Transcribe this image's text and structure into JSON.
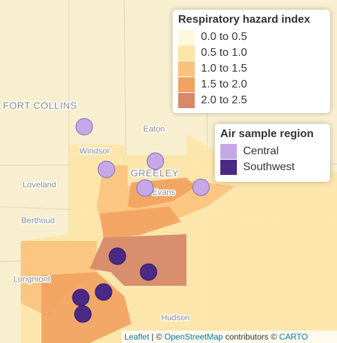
{
  "hazard_legend": {
    "title": "Respiratory hazard index",
    "items": [
      {
        "label": "0.0 to 0.5",
        "color": "#fff8dc"
      },
      {
        "label": "0.5 to 1.0",
        "color": "#fde4a7"
      },
      {
        "label": "1.0 to 1.5",
        "color": "#f9c27c"
      },
      {
        "label": "1.5 to 2.0",
        "color": "#f2a160"
      },
      {
        "label": "2.0 to 2.5",
        "color": "#d7896a"
      }
    ]
  },
  "region_legend": {
    "title": "Air sample region",
    "items": [
      {
        "label": "Central",
        "color": "#c6a8e8"
      },
      {
        "label": "Southwest",
        "color": "#4b2a86"
      }
    ]
  },
  "places": [
    "FORT COLLINS",
    "Eaton",
    "Windsor",
    "GREELEY",
    "Loveland",
    "Evans",
    "Berthoud",
    "Longmont",
    "Hudson"
  ],
  "attribution": {
    "leaflet": "Leaflet",
    "separator": "| ©",
    "osm": "OpenStreetMap",
    "contributors": "contributors ©",
    "carto": "CARTO"
  }
}
